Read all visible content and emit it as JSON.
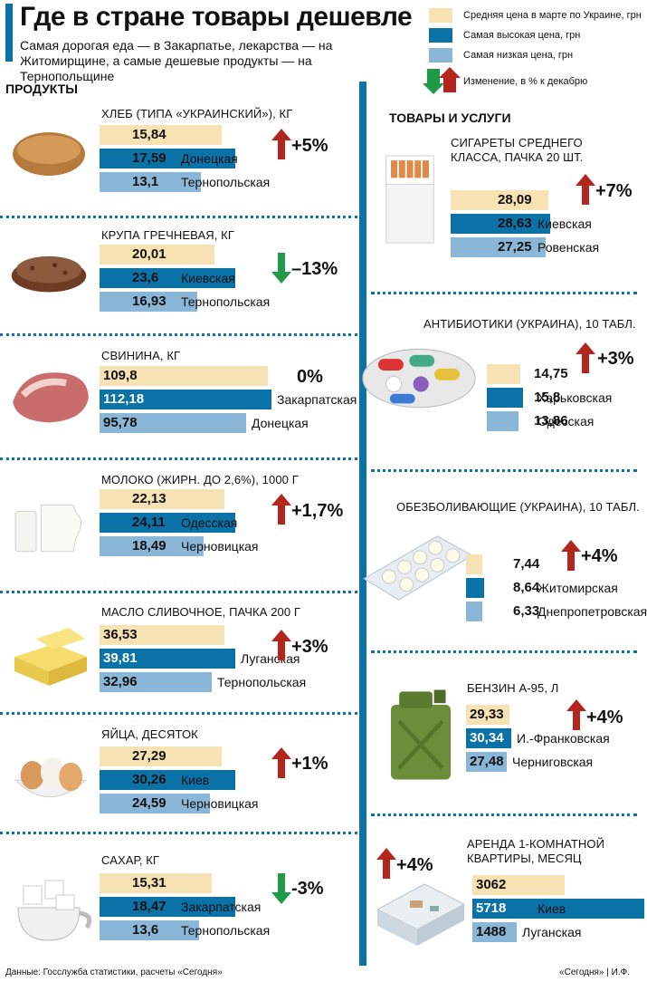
{
  "header": {
    "title": "Где в стране товары дешевле",
    "subtitle": "Самая дорогая еда — в Закарпатье, лекарства — на Житомирщине, а самые дешевые продукты — на Тернопольщине"
  },
  "legend": {
    "avg": "Средняя цена в марте по Украине, грн",
    "max": "Самая высокая цена, грн",
    "min": "Самая низкая цена, грн",
    "change": "Изменение, в % к декабрю"
  },
  "sections": {
    "food": "ПРОДУКТЫ",
    "goods": "ТОВАРЫ И УСЛУГИ"
  },
  "colors": {
    "avg": "#f6e2b3",
    "max": "#0b72a8",
    "min": "#8ab6d8",
    "up": "#b3261e",
    "down": "#1f9a49",
    "accent": "#0b72a8"
  },
  "footer": {
    "source": "Данные: Госслужба статистики, расчеты «Сегодня»",
    "credit": "«Сегодня» | И.Ф."
  },
  "chart_data": {
    "type": "bar",
    "series_names": [
      "Средняя цена в марте по Украине, грн",
      "Самая высокая цена, грн",
      "Самая низкая цена, грн"
    ],
    "items": [
      {
        "name": "ХЛЕБ (ТИПА «УКРАИНСКИЙ»), КГ",
        "avg": "15,84",
        "max": "17,59",
        "max_region": "Донецкая",
        "min": "13,1",
        "min_region": "Тернопольская",
        "change": "+5%",
        "direction": "up",
        "icon": "bread-icon"
      },
      {
        "name": "КРУПА ГРЕЧНЕВАЯ, КГ",
        "avg": "20,01",
        "max": "23,6",
        "max_region": "Киевская",
        "min": "16,93",
        "min_region": "Тернопольская",
        "change": "–13%",
        "direction": "down",
        "icon": "buckwheat-icon"
      },
      {
        "name": "СВИНИНА, КГ",
        "avg": "109,8",
        "max": "112,18",
        "max_region": "Закарпатская",
        "min": "95,78",
        "min_region": "Донецкая",
        "change": "0%",
        "direction": "none",
        "icon": "pork-icon"
      },
      {
        "name": "МОЛОКО (ЖИРН. ДО 2,6%), 1000 Г",
        "avg": "22,13",
        "max": "24,11",
        "max_region": "Одесская",
        "min": "18,49",
        "min_region": "Черновицкая",
        "change": "+1,7%",
        "direction": "up",
        "icon": "milk-icon"
      },
      {
        "name": "МАСЛО СЛИВОЧНОЕ, ПАЧКА 200 Г",
        "avg": "36,53",
        "max": "39,81",
        "max_region": "Луганская",
        "min": "32,96",
        "min_region": "Тернопольская",
        "change": "+3%",
        "direction": "up",
        "icon": "butter-icon"
      },
      {
        "name": "ЯЙЦА, ДЕСЯТОК",
        "avg": "27,29",
        "max": "30,26",
        "max_region": "Киев",
        "min": "24,59",
        "min_region": "Черновицкая",
        "change": "+1%",
        "direction": "up",
        "icon": "eggs-icon"
      },
      {
        "name": "САХАР, КГ",
        "avg": "15,31",
        "max": "18,47",
        "max_region": "Закарпатская",
        "min": "13,6",
        "min_region": "Тернопольская",
        "change": "-3%",
        "direction": "down",
        "icon": "sugar-icon"
      },
      {
        "name": "СИГАРЕТЫ СРЕДНЕГО КЛАССА, ПАЧКА 20 ШТ.",
        "avg": "28,09",
        "max": "28,63",
        "max_region": "Киевская",
        "min": "27,25",
        "min_region": "Ровенская",
        "change": "+7%",
        "direction": "up",
        "icon": "cigarettes-icon"
      },
      {
        "name": "АНТИБИОТИКИ (УКРАИНА), 10 ТАБЛ.",
        "avg": "14,75",
        "max": "15,8",
        "max_region": "Харьковская",
        "min": "13,86",
        "min_region": "Одесская",
        "change": "+3%",
        "direction": "up",
        "icon": "pills-icon"
      },
      {
        "name": "ОБЕЗБОЛИВАЮЩИЕ (УКРАИНА), 10 ТАБЛ.",
        "avg": "7,44",
        "max": "8,64",
        "max_region": "Житомирская",
        "min": "6,33",
        "min_region": "Днепропетровская",
        "change": "+4%",
        "direction": "up",
        "icon": "tablets-icon"
      },
      {
        "name": "БЕНЗИН А-95, Л",
        "avg": "29,33",
        "max": "30,34",
        "max_region": "И.-Франковская",
        "min": "27,48",
        "min_region": "Черниговская",
        "change": "+4%",
        "direction": "up",
        "icon": "canister-icon"
      },
      {
        "name": "АРЕНДА 1-КОМНАТНОЙ КВАРТИРЫ, МЕСЯЦ",
        "avg": "3062",
        "max": "5718",
        "max_region": "Киев",
        "min": "1488",
        "min_region": "Луганская",
        "change": "+4%",
        "direction": "up",
        "icon": "apartment-icon"
      }
    ]
  }
}
